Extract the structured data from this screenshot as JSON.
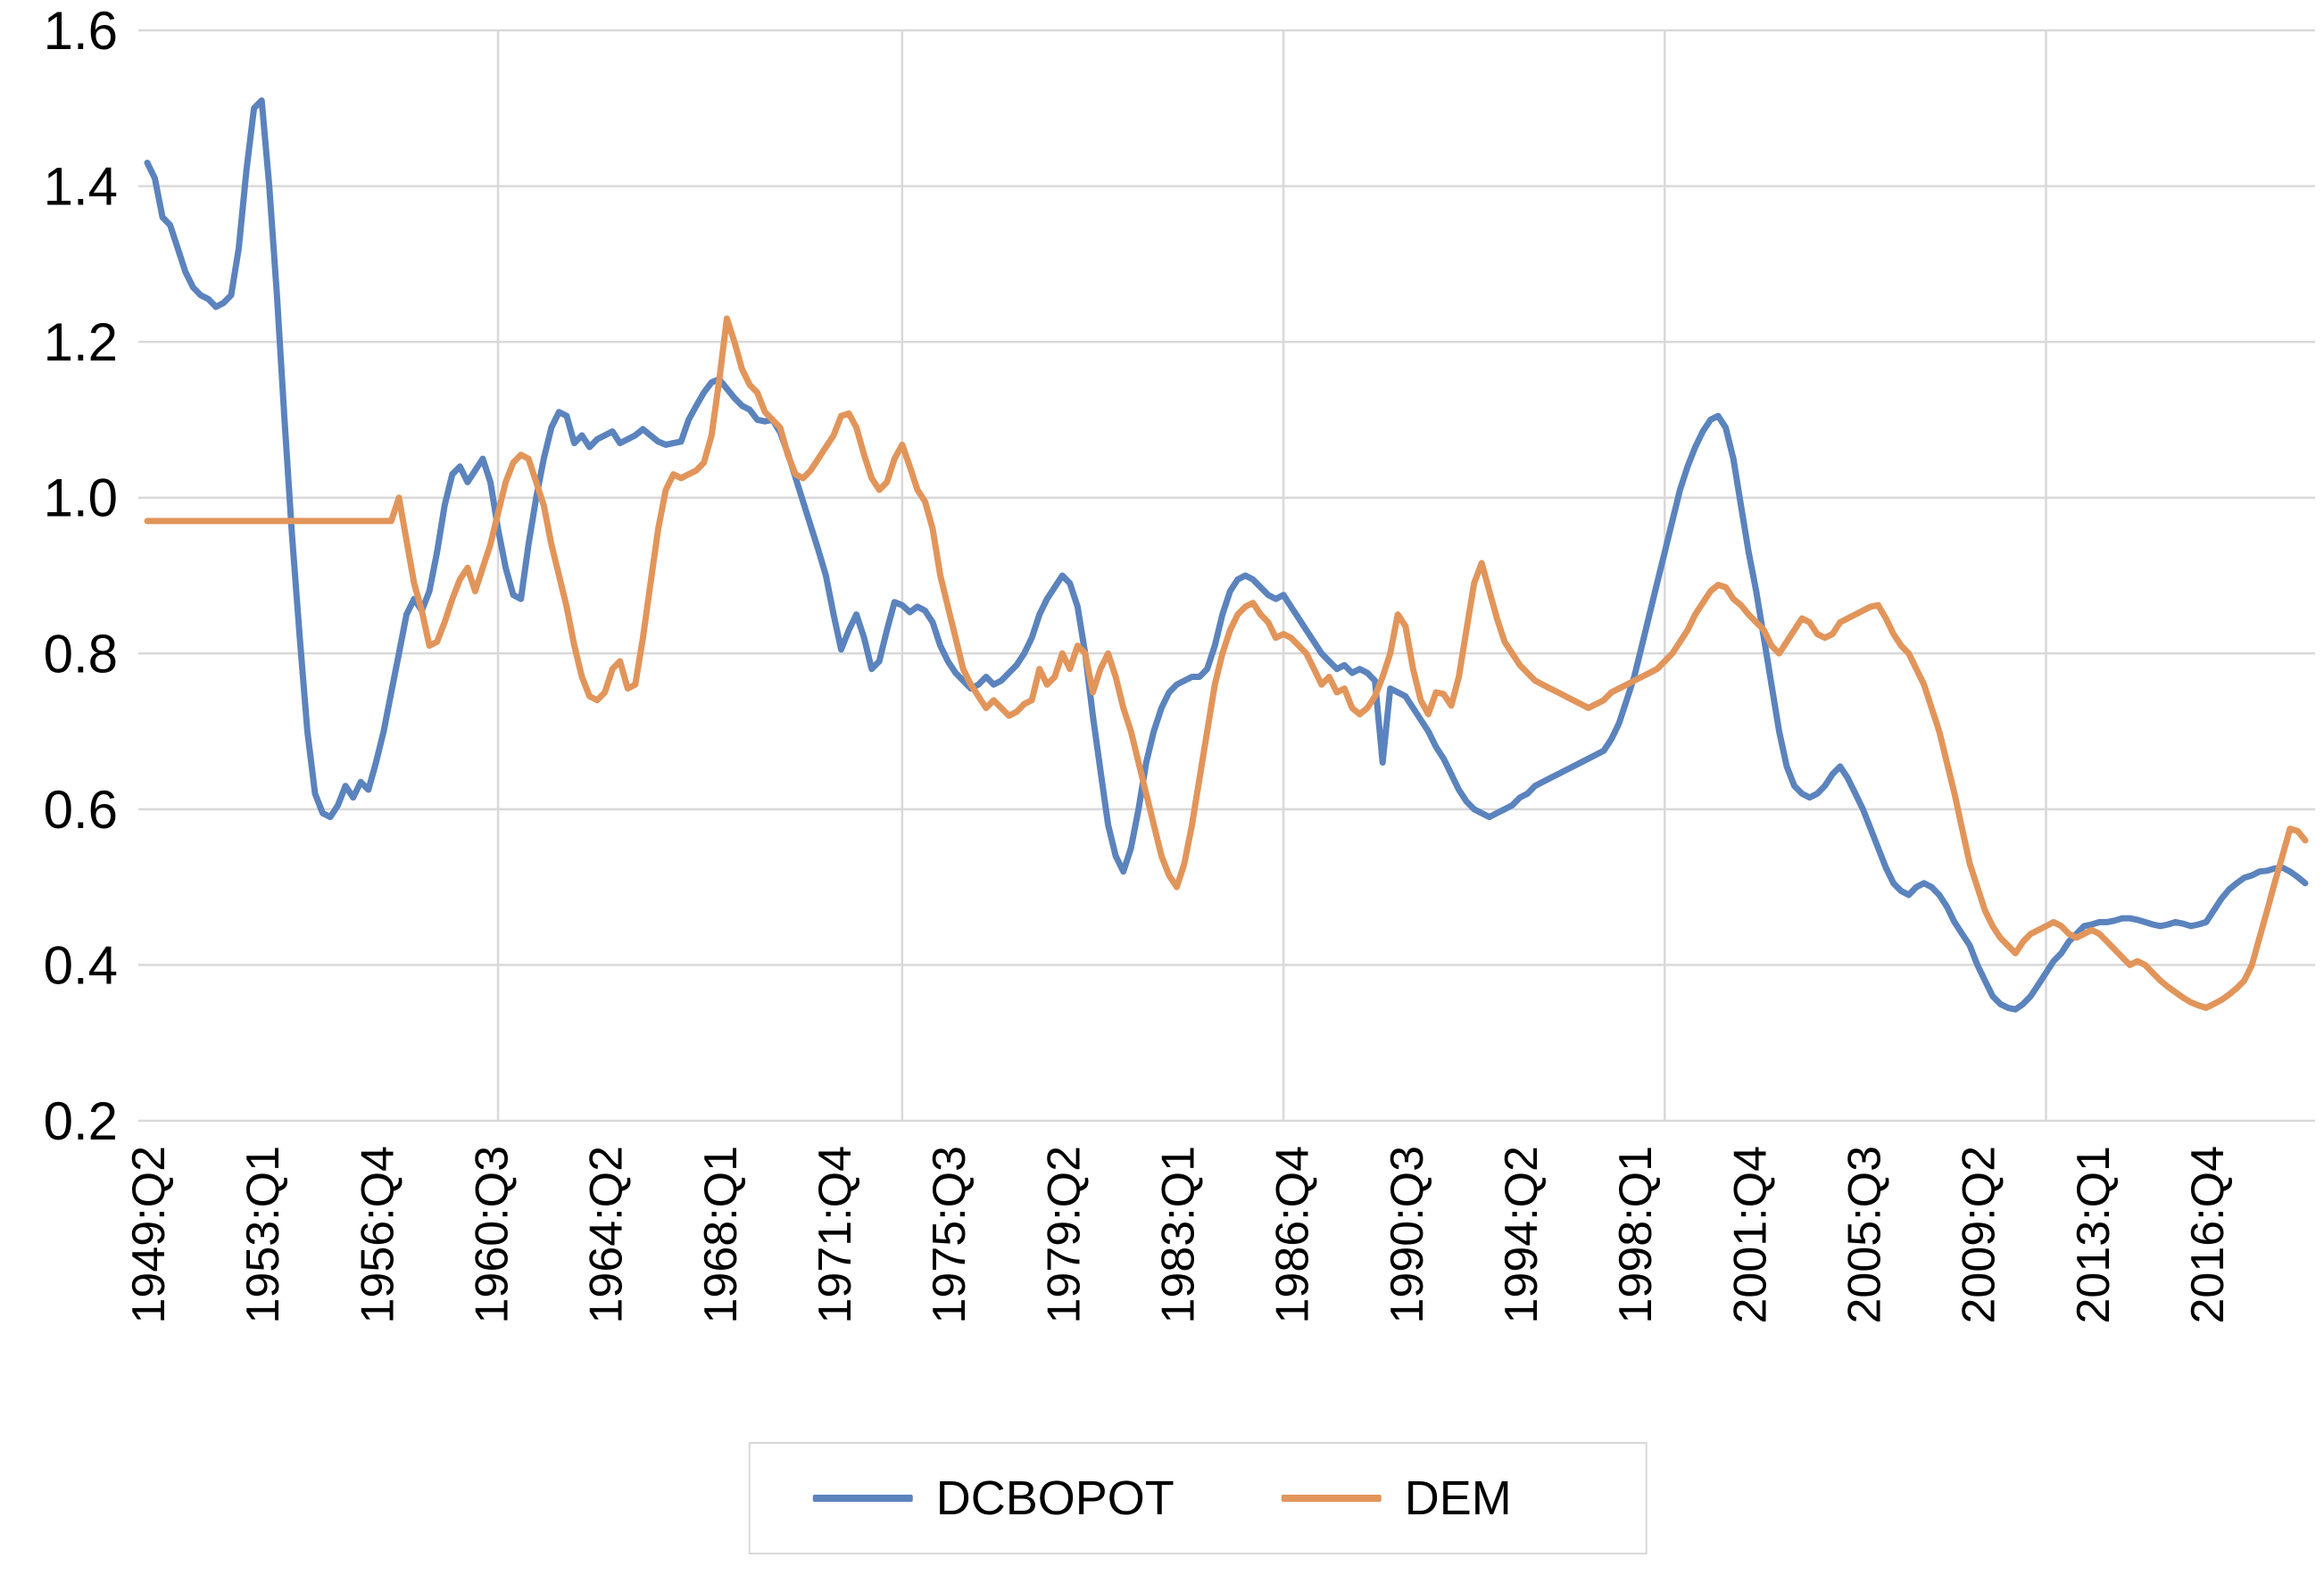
{
  "chart_data": {
    "type": "line",
    "title": "",
    "x_axis": {
      "unit": "quarter",
      "start_quarter": "1949:Q2",
      "end_quarter": "2020:Q1",
      "tick_every_n_quarters": 15,
      "tick_labels": [
        "1949:Q2",
        "1953:Q1",
        "1956:Q4",
        "1960:Q3",
        "1964:Q2",
        "1968:Q1",
        "1971:Q4",
        "1975:Q3",
        "1979:Q2",
        "1983:Q1",
        "1986:Q4",
        "1990:Q3",
        "1994:Q2",
        "1998:Q1",
        "2001:Q4",
        "2005:Q3",
        "2009:Q2",
        "2013:Q1",
        "2016:Q4"
      ]
    },
    "y_axis": {
      "min": 0.2,
      "max": 1.6,
      "step": 0.2,
      "tick_labels": [
        "0.2",
        "0.4",
        "0.6",
        "0.8",
        "1.0",
        "1.2",
        "1.4",
        "1.6"
      ]
    },
    "grid": {
      "color": "#d9d9d9",
      "horizontal": true,
      "vertical": true,
      "vertical_line_quarters": [
        46,
        99,
        149,
        199,
        249
      ]
    },
    "legend": {
      "position": "bottom-center",
      "border_color": "#d9d9d9",
      "entries": [
        {
          "label": "DCBOPOT",
          "color": "#5b83bd"
        },
        {
          "label": "DEM",
          "color": "#e2955a"
        }
      ]
    },
    "series": [
      {
        "name": "DCBOPOT",
        "color": "#5b83bd",
        "first_quarter": "1949:Q2",
        "quarterly_values": [
          1.43,
          1.41,
          1.36,
          1.35,
          1.32,
          1.29,
          1.27,
          1.26,
          1.255,
          1.245,
          1.25,
          1.26,
          1.32,
          1.42,
          1.5,
          1.51,
          1.4,
          1.26,
          1.1,
          0.95,
          0.82,
          0.7,
          0.62,
          0.595,
          0.59,
          0.605,
          0.63,
          0.615,
          0.635,
          0.625,
          0.66,
          0.7,
          0.75,
          0.8,
          0.85,
          0.87,
          0.855,
          0.88,
          0.93,
          0.99,
          1.03,
          1.04,
          1.02,
          1.035,
          1.05,
          1.02,
          0.96,
          0.91,
          0.875,
          0.87,
          0.94,
          1.0,
          1.05,
          1.09,
          1.11,
          1.105,
          1.07,
          1.08,
          1.065,
          1.075,
          1.08,
          1.085,
          1.07,
          1.075,
          1.08,
          1.088,
          1.08,
          1.072,
          1.068,
          1.07,
          1.072,
          1.1,
          1.118,
          1.135,
          1.148,
          1.152,
          1.14,
          1.128,
          1.118,
          1.113,
          1.1,
          1.098,
          1.1,
          1.084,
          1.057,
          1.026,
          0.995,
          0.964,
          0.933,
          0.9,
          0.85,
          0.805,
          0.83,
          0.85,
          0.82,
          0.78,
          0.79,
          0.83,
          0.866,
          0.862,
          0.853,
          0.86,
          0.855,
          0.84,
          0.81,
          0.79,
          0.775,
          0.765,
          0.755,
          0.76,
          0.77,
          0.76,
          0.765,
          0.775,
          0.785,
          0.8,
          0.82,
          0.85,
          0.87,
          0.885,
          0.9,
          0.89,
          0.86,
          0.8,
          0.72,
          0.65,
          0.58,
          0.54,
          0.52,
          0.55,
          0.6,
          0.66,
          0.7,
          0.73,
          0.75,
          0.76,
          0.765,
          0.77,
          0.77,
          0.78,
          0.81,
          0.85,
          0.88,
          0.895,
          0.9,
          0.895,
          0.885,
          0.875,
          0.87,
          0.875,
          0.86,
          0.845,
          0.83,
          0.815,
          0.8,
          0.79,
          0.78,
          0.785,
          0.775,
          0.78,
          0.775,
          0.765,
          0.66,
          0.755,
          0.75,
          0.745,
          0.73,
          0.715,
          0.7,
          0.68,
          0.665,
          0.645,
          0.625,
          0.61,
          0.6,
          0.595,
          0.59,
          0.595,
          0.6,
          0.605,
          0.615,
          0.62,
          0.63,
          0.635,
          0.64,
          0.645,
          0.65,
          0.655,
          0.66,
          0.665,
          0.67,
          0.675,
          0.69,
          0.71,
          0.74,
          0.77,
          0.81,
          0.85,
          0.89,
          0.93,
          0.97,
          1.01,
          1.04,
          1.065,
          1.085,
          1.1,
          1.105,
          1.09,
          1.05,
          0.99,
          0.93,
          0.88,
          0.82,
          0.76,
          0.7,
          0.655,
          0.63,
          0.62,
          0.615,
          0.62,
          0.63,
          0.645,
          0.655,
          0.64,
          0.62,
          0.6,
          0.575,
          0.55,
          0.525,
          0.505,
          0.495,
          0.49,
          0.5,
          0.505,
          0.5,
          0.49,
          0.475,
          0.455,
          0.44,
          0.425,
          0.4,
          0.38,
          0.36,
          0.35,
          0.345,
          0.343,
          0.35,
          0.36,
          0.375,
          0.39,
          0.405,
          0.415,
          0.43,
          0.44,
          0.45,
          0.452,
          0.455,
          0.455,
          0.457,
          0.46,
          0.46,
          0.458,
          0.455,
          0.452,
          0.45,
          0.452,
          0.455,
          0.453,
          0.45,
          0.452,
          0.455,
          0.47,
          0.485,
          0.497,
          0.505,
          0.512,
          0.515,
          0.52,
          0.521,
          0.524,
          0.525,
          0.52,
          0.513,
          0.505
        ]
      },
      {
        "name": "DEM",
        "color": "#e2955a",
        "first_quarter": "1949:Q2",
        "quarterly_values": [
          0.97,
          0.97,
          0.97,
          0.97,
          0.97,
          0.97,
          0.97,
          0.97,
          0.97,
          0.97,
          0.97,
          0.97,
          0.97,
          0.97,
          0.97,
          0.97,
          0.97,
          0.97,
          0.97,
          0.97,
          0.97,
          0.97,
          0.97,
          0.97,
          0.97,
          0.97,
          0.97,
          0.97,
          0.97,
          0.97,
          0.97,
          0.97,
          0.97,
          1.0,
          0.945,
          0.89,
          0.855,
          0.81,
          0.815,
          0.84,
          0.87,
          0.895,
          0.91,
          0.88,
          0.91,
          0.94,
          0.98,
          1.02,
          1.045,
          1.055,
          1.05,
          1.02,
          0.99,
          0.94,
          0.9,
          0.86,
          0.81,
          0.77,
          0.745,
          0.74,
          0.75,
          0.78,
          0.79,
          0.755,
          0.76,
          0.82,
          0.89,
          0.96,
          1.01,
          1.03,
          1.025,
          1.03,
          1.035,
          1.045,
          1.08,
          1.15,
          1.23,
          1.2,
          1.165,
          1.145,
          1.135,
          1.11,
          1.1,
          1.09,
          1.055,
          1.03,
          1.025,
          1.035,
          1.05,
          1.065,
          1.08,
          1.105,
          1.108,
          1.09,
          1.055,
          1.025,
          1.01,
          1.02,
          1.05,
          1.068,
          1.04,
          1.01,
          0.995,
          0.96,
          0.9,
          0.86,
          0.82,
          0.78,
          0.76,
          0.745,
          0.73,
          0.74,
          0.73,
          0.72,
          0.725,
          0.735,
          0.74,
          0.78,
          0.76,
          0.77,
          0.8,
          0.78,
          0.81,
          0.8,
          0.75,
          0.78,
          0.8,
          0.77,
          0.73,
          0.7,
          0.66,
          0.62,
          0.58,
          0.54,
          0.515,
          0.5,
          0.53,
          0.58,
          0.64,
          0.7,
          0.76,
          0.8,
          0.83,
          0.85,
          0.86,
          0.865,
          0.85,
          0.84,
          0.82,
          0.825,
          0.82,
          0.81,
          0.8,
          0.78,
          0.76,
          0.77,
          0.75,
          0.755,
          0.73,
          0.722,
          0.73,
          0.745,
          0.77,
          0.8,
          0.85,
          0.835,
          0.78,
          0.74,
          0.722,
          0.75,
          0.748,
          0.733,
          0.77,
          0.83,
          0.89,
          0.916,
          0.88,
          0.845,
          0.815,
          0.8,
          0.785,
          0.775,
          0.765,
          0.76,
          0.755,
          0.75,
          0.745,
          0.74,
          0.735,
          0.73,
          0.735,
          0.74,
          0.75,
          0.755,
          0.76,
          0.765,
          0.77,
          0.775,
          0.78,
          0.79,
          0.8,
          0.815,
          0.83,
          0.85,
          0.865,
          0.88,
          0.888,
          0.885,
          0.87,
          0.862,
          0.85,
          0.84,
          0.83,
          0.81,
          0.8,
          0.815,
          0.83,
          0.845,
          0.84,
          0.825,
          0.82,
          0.825,
          0.84,
          0.845,
          0.85,
          0.855,
          0.86,
          0.862,
          0.845,
          0.825,
          0.81,
          0.8,
          0.78,
          0.76,
          0.73,
          0.7,
          0.66,
          0.62,
          0.575,
          0.53,
          0.5,
          0.47,
          0.45,
          0.435,
          0.425,
          0.415,
          0.43,
          0.44,
          0.445,
          0.45,
          0.455,
          0.45,
          0.44,
          0.435,
          0.44,
          0.445,
          0.44,
          0.43,
          0.42,
          0.41,
          0.4,
          0.405,
          0.4,
          0.39,
          0.38,
          0.372,
          0.365,
          0.358,
          0.352,
          0.348,
          0.345,
          0.35,
          0.355,
          0.362,
          0.37,
          0.38,
          0.4,
          0.435,
          0.47,
          0.506,
          0.54,
          0.575,
          0.572,
          0.56
        ]
      }
    ]
  }
}
